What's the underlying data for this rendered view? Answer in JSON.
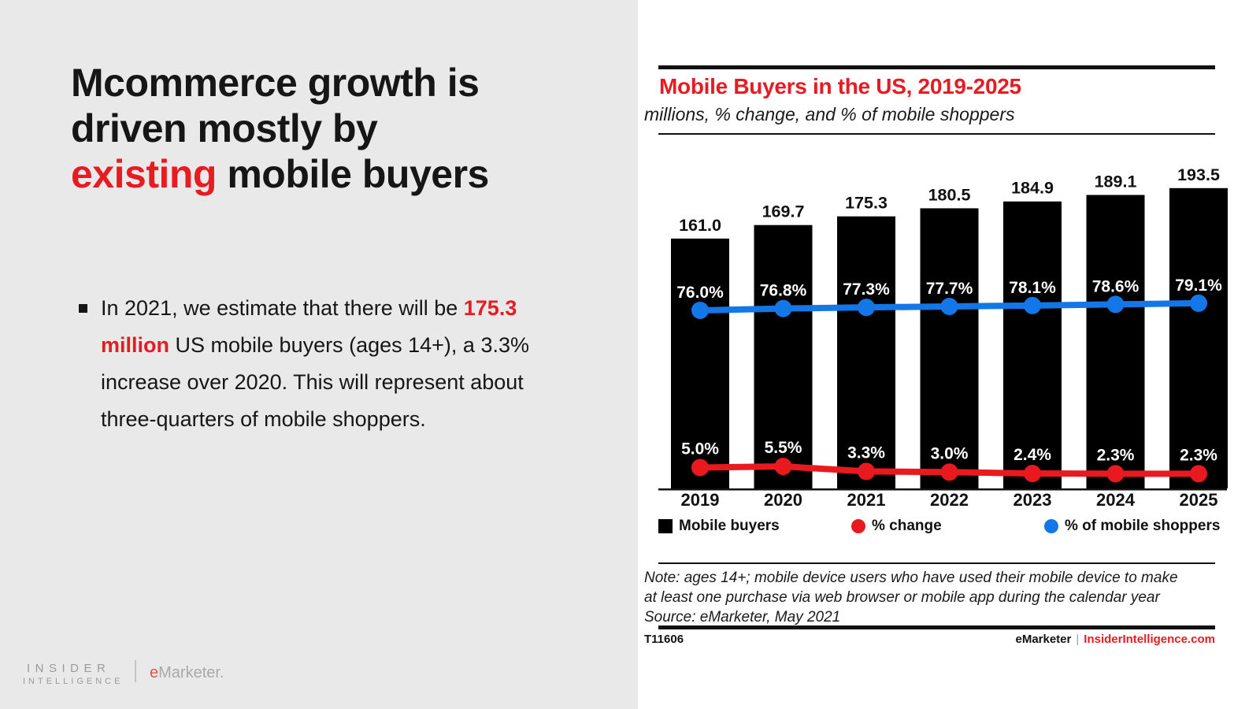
{
  "slide": {
    "headline_lines": [
      [
        {
          "t": "Mcommerce growth is"
        }
      ],
      [
        {
          "t": "driven mostly by"
        }
      ],
      [
        {
          "t": "existing",
          "c": "red"
        },
        {
          "t": " mobile buyers"
        }
      ]
    ],
    "bullet_segments": [
      {
        "t": "In 2021, we estimate that there will be "
      },
      {
        "t": "175.3 million",
        "c": "red",
        "b": true
      },
      {
        "t": " US mobile buyers (ages 14+), a 3.3% increase over 2020. This will represent about three-quarters of mobile shoppers."
      }
    ],
    "logo": {
      "insider": "INSIDER",
      "intelligence": "INTELLIGENCE",
      "emarketer_e": "e",
      "emarketer_rest": "Marketer."
    }
  },
  "chart": {
    "title": "Mobile Buyers in the US, 2019-2025",
    "subtitle": "millions, % change, and % of mobile shoppers",
    "legend": [
      {
        "label": "Mobile buyers",
        "swatch": "square",
        "color": "#000000"
      },
      {
        "label": "% change",
        "swatch": "circle",
        "color": "#e8191f"
      },
      {
        "label": "% of mobile shoppers",
        "swatch": "circle",
        "color": "#1377e8"
      }
    ],
    "note_line1": "Note: ages 14+; mobile device users who have used their mobile device to make",
    "note_line2": "at least one purchase via web browser or mobile app during the calendar year",
    "source": "Source: eMarketer, May 2021",
    "footer_id": "T11606",
    "footer_brand": "eMarketer",
    "footer_sep": "|",
    "footer_site": "InsiderIntelligence.com"
  },
  "chart_data": {
    "type": "bar",
    "title": "Mobile Buyers in the US, 2019-2025",
    "subtitle": "millions, % change, and % of mobile shoppers",
    "categories": [
      "2019",
      "2020",
      "2021",
      "2022",
      "2023",
      "2024",
      "2025"
    ],
    "series": [
      {
        "name": "Mobile buyers",
        "type": "bar",
        "unit": "millions",
        "color": "#000000",
        "values": [
          161.0,
          169.7,
          175.3,
          180.5,
          184.9,
          189.1,
          193.5
        ]
      },
      {
        "name": "% change",
        "type": "line",
        "unit": "%",
        "color": "#e8191f",
        "values": [
          5.0,
          5.5,
          3.3,
          3.0,
          2.4,
          2.3,
          2.3
        ]
      },
      {
        "name": "% of mobile shoppers",
        "type": "line",
        "unit": "%",
        "color": "#1377e8",
        "values": [
          76.0,
          76.8,
          77.3,
          77.7,
          78.1,
          78.6,
          79.1
        ]
      }
    ],
    "legend_position": "bottom",
    "grid": false,
    "value_labels": true
  },
  "colors": {
    "red": "#e81b23",
    "blue": "#1377e8",
    "bar_black": "#000000",
    "left_bg": "#e9e9e9",
    "logo_gray": "#9b9b9b"
  }
}
